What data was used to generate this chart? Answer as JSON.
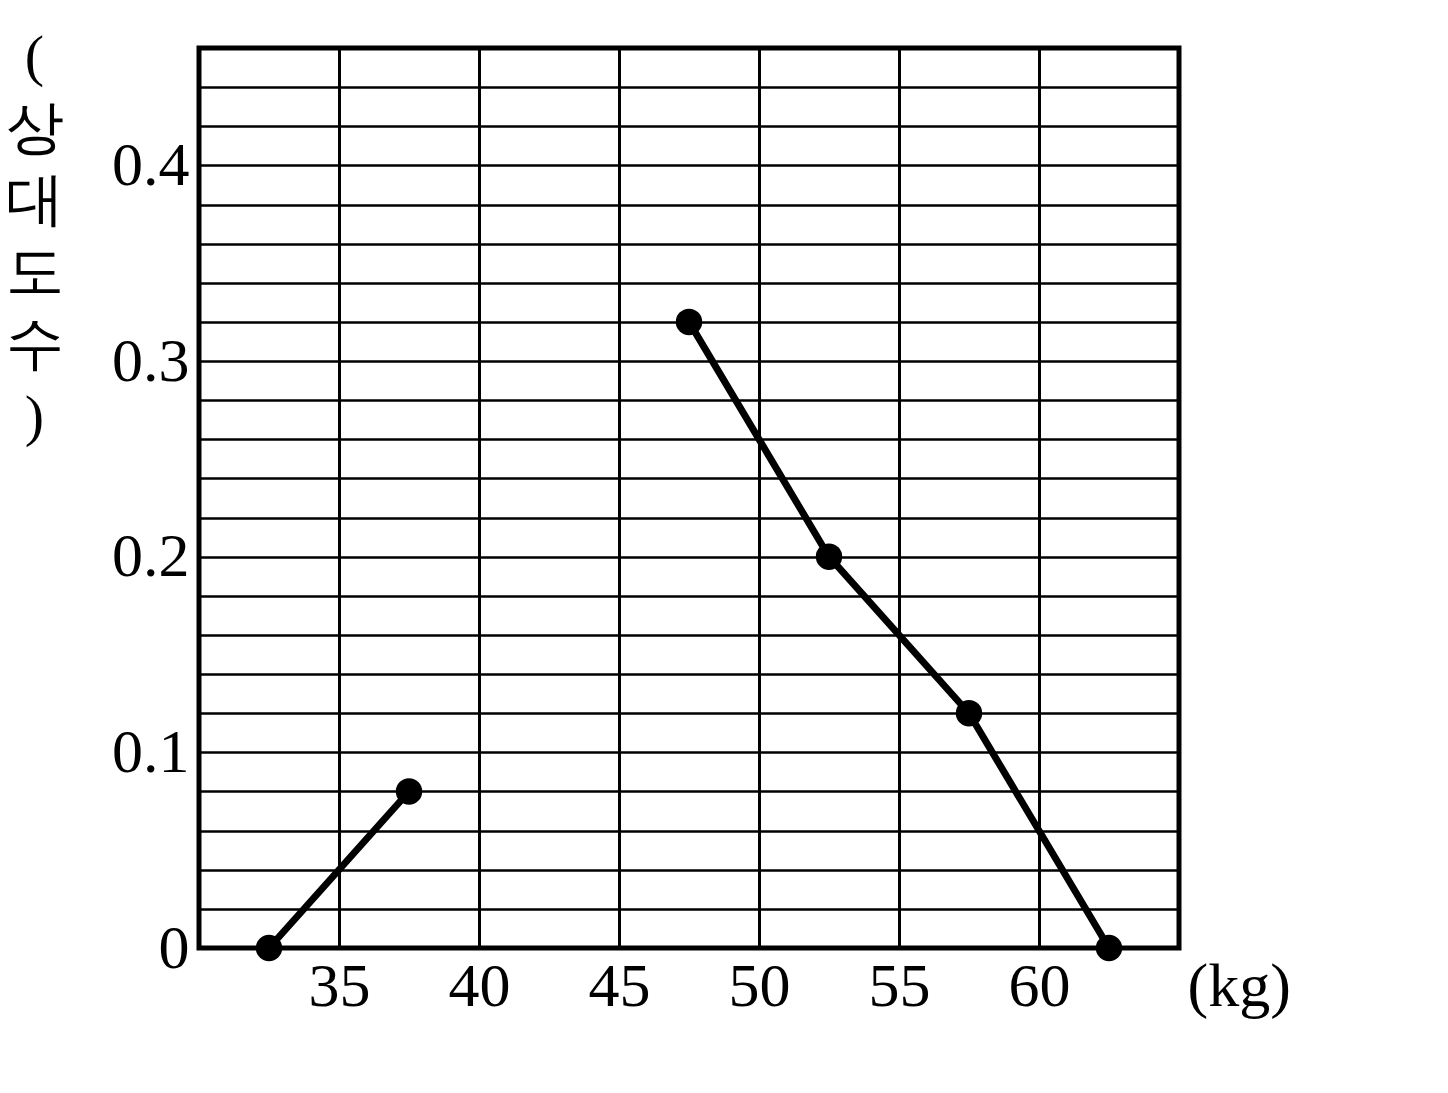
{
  "chart_data": {
    "type": "line",
    "xlabel": "(kg)",
    "ylabel": "(상대도수)",
    "x": [
      32.5,
      37.5,
      42.5,
      47.5,
      52.5,
      57.5,
      62.5
    ],
    "series": [
      {
        "color": "#000000",
        "values": [
          0,
          0.08,
          null,
          0.32,
          0.2,
          0.12,
          0
        ]
      }
    ],
    "xlim": [
      30,
      65
    ],
    "xticks": [
      35,
      40,
      45,
      50,
      55,
      60
    ],
    "ylim": [
      0,
      0.46
    ],
    "yticks": [
      0,
      {
        "value": 0.02,
        "label": null
      },
      {
        "value": 0.04,
        "label": null
      },
      {
        "value": 0.06,
        "label": null
      },
      {
        "value": 0.08,
        "label": null
      },
      0.1,
      {
        "value": 0.12,
        "label": null
      },
      {
        "value": 0.14,
        "label": null
      },
      {
        "value": 0.16,
        "label": null
      },
      {
        "value": 0.18,
        "label": null
      },
      0.2,
      {
        "value": 0.22,
        "label": null
      },
      {
        "value": 0.24,
        "label": null
      },
      {
        "value": 0.26,
        "label": null
      },
      {
        "value": 0.28,
        "label": null
      },
      0.3,
      {
        "value": 0.32,
        "label": null
      },
      {
        "value": 0.34,
        "label": null
      },
      {
        "value": 0.36,
        "label": null
      },
      {
        "value": 0.38,
        "label": null
      },
      0.4,
      {
        "value": 0.42,
        "label": null
      },
      {
        "value": 0.44,
        "label": null
      },
      {
        "value": 0.46,
        "label": null
      }
    ],
    "grid": true,
    "marker": "circle",
    "line_style": "solid",
    "legend": false
  }
}
